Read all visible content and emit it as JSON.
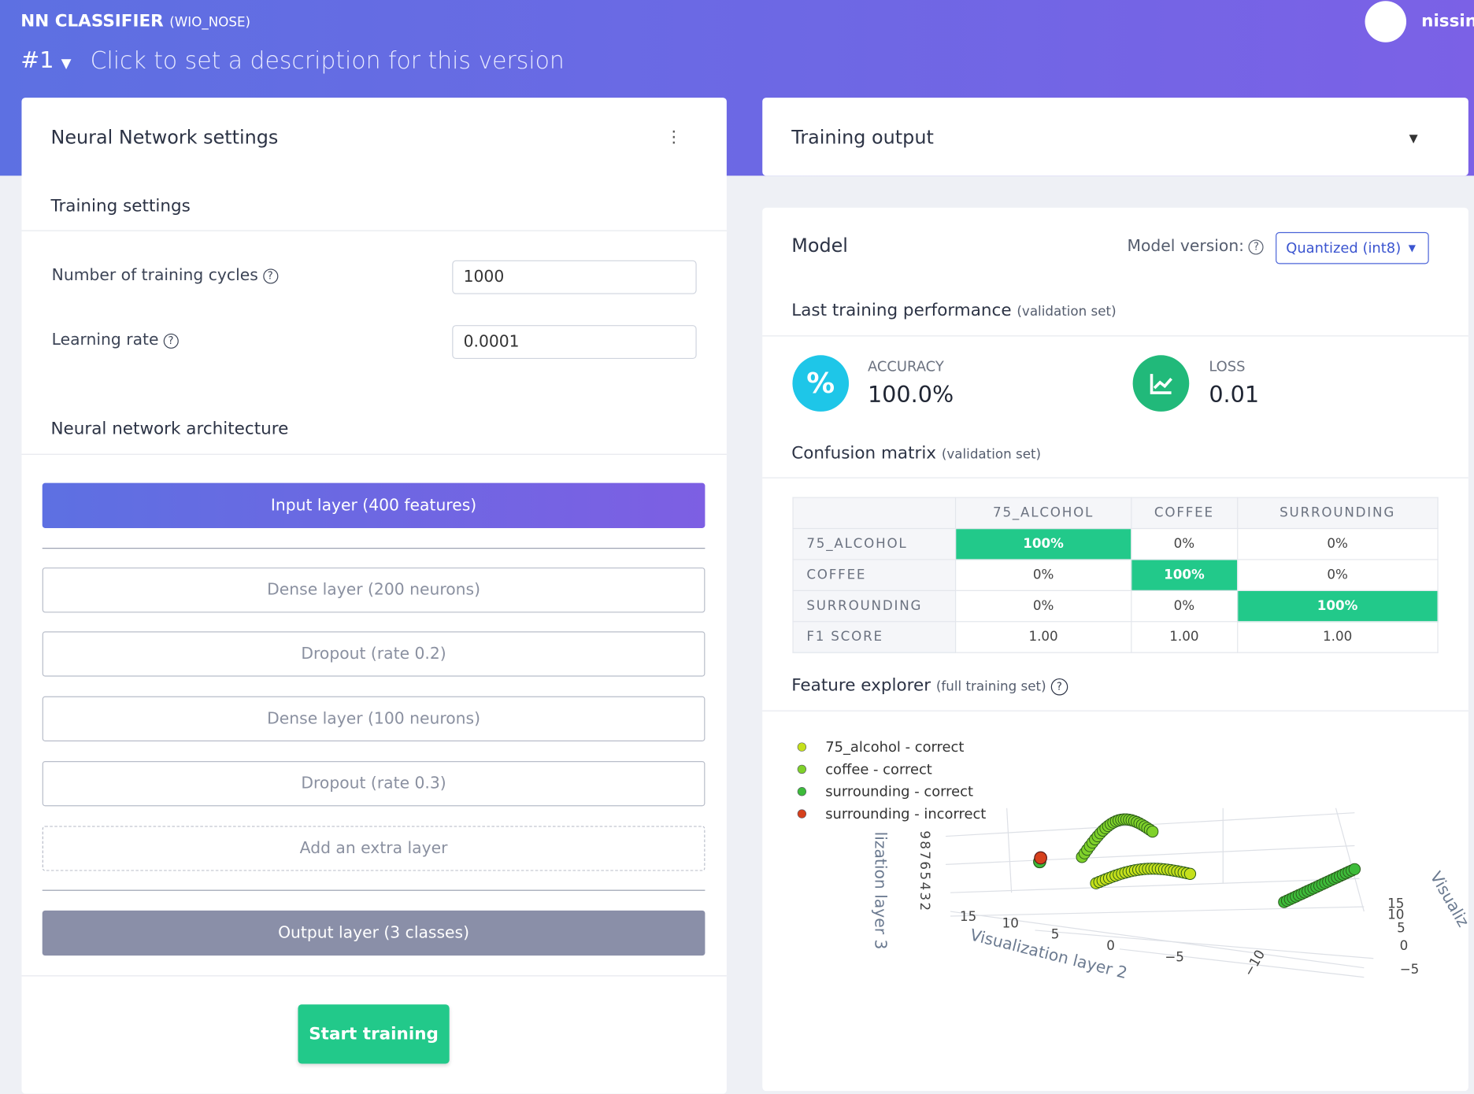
{
  "header": {
    "title": "NN CLASSIFIER",
    "subtitle": "(WIO_NOSE)",
    "version": "#1",
    "description": "Click to set a description for this version",
    "user": "nissin"
  },
  "settings_panel": {
    "title": "Neural Network settings",
    "training_settings": {
      "heading": "Training settings",
      "fields": [
        {
          "label": "Number of training cycles",
          "value": "1000"
        },
        {
          "label": "Learning rate",
          "value": "0.0001"
        }
      ]
    },
    "architecture": {
      "heading": "Neural network architecture",
      "input": "Input layer (400 features)",
      "layers": [
        "Dense layer (200 neurons)",
        "Dropout (rate 0.2)",
        "Dense layer (100 neurons)",
        "Dropout (rate 0.3)"
      ],
      "add": "Add an extra layer",
      "output": "Output layer (3 classes)"
    },
    "button": "Start training"
  },
  "training_output": {
    "title": "Training output"
  },
  "model": {
    "title": "Model",
    "version_label": "Model version:",
    "version": "Quantized (int8)",
    "performance": {
      "heading": "Last training performance",
      "note": "(validation set)",
      "accuracy_label": "ACCURACY",
      "accuracy": "100.0%",
      "loss_label": "LOSS",
      "loss": "0.01"
    },
    "confusion": {
      "heading": "Confusion matrix",
      "note": "(validation set)",
      "columns": [
        "75_ALCOHOL",
        "COFFEE",
        "SURROUNDING"
      ],
      "rows": [
        {
          "label": "75_ALCOHOL",
          "cells": [
            "100%",
            "0%",
            "0%"
          ]
        },
        {
          "label": "COFFEE",
          "cells": [
            "0%",
            "100%",
            "0%"
          ]
        },
        {
          "label": "SURROUNDING",
          "cells": [
            "0%",
            "0%",
            "100%"
          ]
        },
        {
          "label": "F1 SCORE",
          "cells": [
            "1.00",
            "1.00",
            "1.00"
          ]
        }
      ]
    },
    "explorer": {
      "heading": "Feature explorer",
      "note": "(full training set)",
      "legend": [
        {
          "label": "75_alcohol - correct",
          "color": "#c5e01b"
        },
        {
          "label": "coffee - correct",
          "color": "#7fd12a"
        },
        {
          "label": "surrounding - correct",
          "color": "#3dbb3a"
        },
        {
          "label": "surrounding - incorrect",
          "color": "#d6401c"
        }
      ],
      "x_label": "Visualization layer 2",
      "x_ticks": [
        "15",
        "10",
        "5",
        "0",
        "−5",
        "−10"
      ],
      "z_label": "lization layer 3",
      "z_ticks": "98765432",
      "y_label": "Visualiz",
      "y_ticks": [
        "15",
        "10",
        "5",
        "0",
        "−5"
      ]
    }
  }
}
